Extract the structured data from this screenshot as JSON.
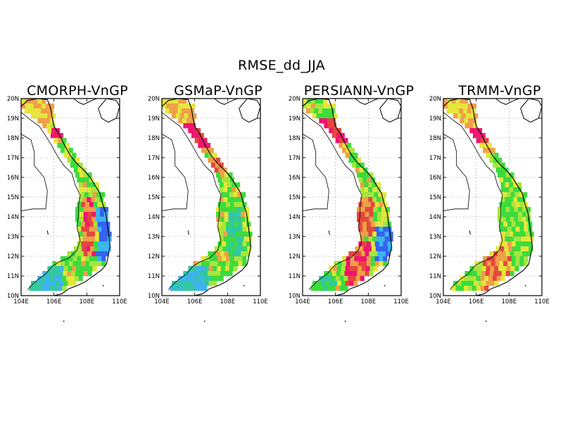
{
  "figure": {
    "title": "RMSE_dd_JJA"
  },
  "panels": [
    {
      "title": "CMORPH-VnGP",
      "palette": "cmorph"
    },
    {
      "title": "GSMaP-VnGP",
      "palette": "gsmap"
    },
    {
      "title": "PERSIANN-VnGP",
      "palette": "persiann"
    },
    {
      "title": "TRMM-VnGP",
      "palette": "trmm"
    }
  ],
  "axes": {
    "lon_range": [
      104,
      110
    ],
    "lat_range": [
      10,
      20
    ],
    "lon_ticks": [
      "104E",
      "106E",
      "108E",
      "110E"
    ],
    "lat_ticks": [
      "10N",
      "11N",
      "12N",
      "13N",
      "14N",
      "15N",
      "16N",
      "17N",
      "18N",
      "19N",
      "20N"
    ],
    "grid": "dotted"
  },
  "colors": {
    "green": "#3cdc3c",
    "yellow_green": "#a6e63c",
    "yellow": "#e6e63c",
    "orange": "#f0a046",
    "red": "#e6463c",
    "magenta": "#f0146e",
    "teal": "#32c8a0",
    "cyan": "#3cb4f0",
    "blue": "#3264f0"
  }
}
